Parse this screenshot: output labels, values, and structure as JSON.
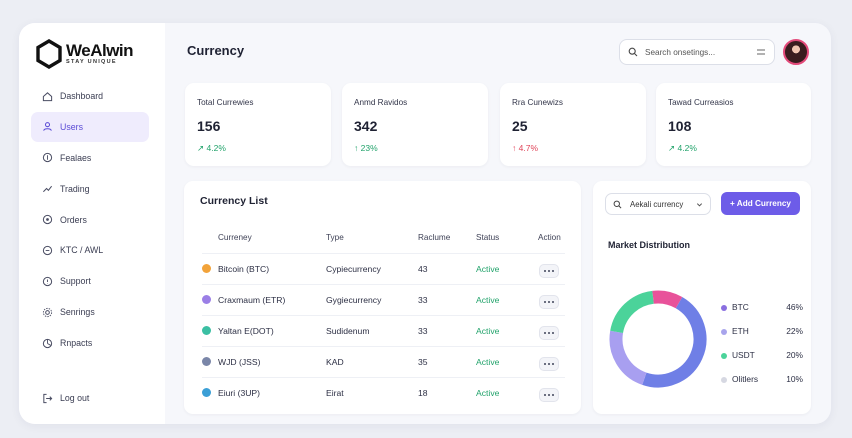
{
  "app": {
    "logo_name": "WeAlwin",
    "logo_tagline": "STAY UNIQUE",
    "page_title": "Currency"
  },
  "sidebar": {
    "items": [
      {
        "label": "Dashboard",
        "icon": "home-icon"
      },
      {
        "label": "Users",
        "icon": "user-icon",
        "active": true
      },
      {
        "label": "Fealaes",
        "icon": "coin-icon"
      },
      {
        "label": "Trading",
        "icon": "trend-icon"
      },
      {
        "label": "Orders",
        "icon": "orders-icon"
      },
      {
        "label": "KTC / AWL",
        "icon": "shield-icon"
      },
      {
        "label": "Support",
        "icon": "support-icon"
      },
      {
        "label": "Senrings",
        "icon": "gear-icon"
      },
      {
        "label": "Rnpacts",
        "icon": "reports-icon"
      }
    ],
    "logout_label": "Log out"
  },
  "header": {
    "search_placeholder": "Search onsetings..."
  },
  "stats": [
    {
      "label": "Total Currewies",
      "value": "156",
      "delta": "4.2%",
      "direction": "up"
    },
    {
      "label": "Anmd Ravidos",
      "value": "342",
      "delta": "23%",
      "direction": "up"
    },
    {
      "label": "Rra Cunewizs",
      "value": "25",
      "delta": "4.7%",
      "direction": "down"
    },
    {
      "label": "Tawad Curreasios",
      "value": "108",
      "delta": "4.2%",
      "direction": "up"
    }
  ],
  "currency_list": {
    "title": "Currency List",
    "columns": [
      "Curreney",
      "Type",
      "Raclume",
      "Status",
      "Action"
    ],
    "rows": [
      {
        "name": "Bitcoin (BTC)",
        "type": "Cypiecurrency",
        "volume": "43",
        "status": "Active",
        "color": "#f2a33a"
      },
      {
        "name": "Craxmaum (ETR)",
        "type": "Gygiecurrency",
        "volume": "33",
        "status": "Active",
        "color": "#9b7fe6"
      },
      {
        "name": "Yaltan E(DOT)",
        "type": "Sudidenum",
        "volume": "33",
        "status": "Active",
        "color": "#3bbfa3"
      },
      {
        "name": "WJD (JSS)",
        "type": "KAD",
        "volume": "35",
        "status": "Active",
        "color": "#7a86a8"
      },
      {
        "name": "Eiuri (3UP)",
        "type": "Eirat",
        "volume": "18",
        "status": "Active",
        "color": "#3b9fd6"
      }
    ]
  },
  "market": {
    "select_value": "Aekali currency",
    "add_button_label": "+ Add Currency",
    "title": "Market Distribution",
    "legend": [
      {
        "name": "BTC",
        "value": "46%",
        "color": "#8a6fe0"
      },
      {
        "name": "ETH",
        "value": "22%",
        "color": "#a8a4ec"
      },
      {
        "name": "USDT",
        "value": "20%",
        "color": "#4bd39a"
      },
      {
        "name": "Olitlers",
        "value": "10%",
        "color": "#d6d8e2"
      }
    ]
  },
  "chart_data": {
    "type": "pie",
    "categories": [
      "BTC",
      "ETH",
      "USDT",
      "Olitlers"
    ],
    "values": [
      46,
      22,
      20,
      10
    ],
    "title": "Market Distribution"
  }
}
